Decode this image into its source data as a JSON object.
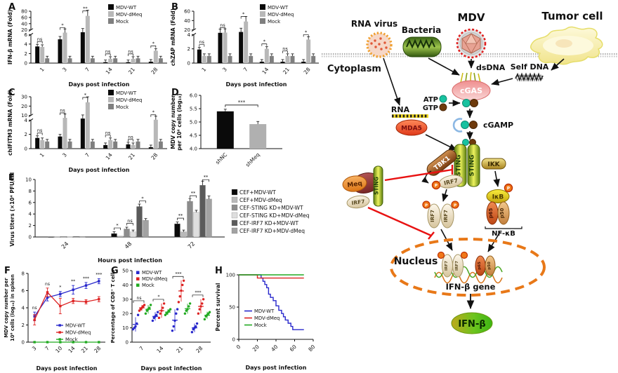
{
  "chart_data": [
    {
      "panel": "A",
      "type": "bar-broken",
      "ylabel": "IFN-β mRNA (Fold)",
      "xlabel": "Days post infection",
      "categories": [
        "1",
        "3",
        "7",
        "14",
        "21",
        "28"
      ],
      "series": [
        {
          "name": "MDV-WT",
          "color": "#0a0a0a",
          "values": [
            3.5,
            5.0,
            13,
            0.2,
            0.2,
            0.3
          ]
        },
        {
          "name": "MDV-dMeq",
          "color": "#b8b8b8",
          "values": [
            3.4,
            12,
            65,
            0.9,
            0.9,
            2.6
          ]
        },
        {
          "name": "Mock",
          "color": "#7f7f7f",
          "values": [
            1,
            1,
            1,
            1,
            1,
            1
          ]
        }
      ],
      "significance": [
        "ns",
        "*",
        "**",
        "ns",
        "ns",
        "*"
      ],
      "axis": {
        "lower": [
          0,
          6
        ],
        "lower_ticks": [
          0,
          2,
          4,
          6
        ],
        "upper": [
          20,
          80
        ],
        "upper_ticks": [
          20,
          40,
          60,
          80
        ]
      }
    },
    {
      "panel": "B",
      "type": "bar-broken",
      "ylabel": "chZAP mRNA (Fold)",
      "xlabel": "Days post infection",
      "categories": [
        "1",
        "3",
        "7",
        "14",
        "21",
        "28"
      ],
      "series": [
        {
          "name": "MDV-WT",
          "color": "#0a0a0a",
          "values": [
            1.9,
            10,
            13,
            0.2,
            0.2,
            0.2
          ]
        },
        {
          "name": "MDV-dMeq",
          "color": "#b8b8b8",
          "values": [
            1.0,
            11,
            38,
            2.0,
            1.0,
            3.3
          ]
        },
        {
          "name": "Mock",
          "color": "#7f7f7f",
          "values": [
            1,
            1,
            1,
            1,
            1,
            1
          ]
        }
      ],
      "significance": [
        "ns",
        "ns",
        "*",
        "*",
        "ns",
        "*"
      ],
      "axis": {
        "lower": [
          0,
          4
        ],
        "lower_ticks": [
          0,
          2,
          4
        ],
        "upper": [
          20,
          60
        ],
        "upper_ticks": [
          20,
          40,
          60
        ]
      }
    },
    {
      "panel": "C",
      "type": "bar-broken",
      "ylabel": "chIFITM3 mRNA (Fold)",
      "xlabel": "Days post infection",
      "categories": [
        "1",
        "3",
        "7",
        "14",
        "21",
        "28"
      ],
      "series": [
        {
          "name": "MDV-WT",
          "color": "#0a0a0a",
          "values": [
            1.5,
            1.7,
            6,
            0.5,
            0.6,
            0.2
          ]
        },
        {
          "name": "MDV-dMeq",
          "color": "#b8b8b8",
          "values": [
            1.2,
            7,
            24,
            1.2,
            0.5,
            4.5
          ]
        },
        {
          "name": "Mock",
          "color": "#7f7f7f",
          "values": [
            1,
            1,
            1,
            1,
            1,
            1
          ]
        }
      ],
      "significance": [
        "ns",
        "ns",
        "*",
        "ns",
        "ns",
        "*"
      ],
      "axis": {
        "lower": [
          0,
          4
        ],
        "lower_ticks": [
          0,
          2,
          4
        ],
        "upper": [
          10,
          30
        ],
        "upper_ticks": [
          10,
          20,
          30
        ]
      }
    },
    {
      "panel": "D",
      "type": "bar",
      "ylabel_lines": [
        "MDV copy number",
        "per 10⁶ cells (log₁₀)"
      ],
      "categories": [
        "shNC",
        "shMeq"
      ],
      "values": [
        5.4,
        4.92
      ],
      "errors": [
        0.04,
        0.05
      ],
      "colors": [
        "#0a0a0a",
        "#b0b0b0"
      ],
      "significance": "***",
      "ylim": [
        4,
        6
      ],
      "yticks": [
        4.0,
        4.5,
        5.0,
        5.5,
        6.0
      ]
    },
    {
      "panel": "E",
      "type": "bar-group",
      "ylabel": "Virus titers (×10⁴ PFU/ml)",
      "xlabel": "Hours post infection",
      "categories": [
        "24",
        "48",
        "72"
      ],
      "series": [
        {
          "name": "CEF+MDV-WT",
          "color": "#0a0a0a",
          "values": [
            0.05,
            0.6,
            2.3
          ]
        },
        {
          "name": "CEF+MDV-dMeq",
          "color": "#b9b9b9",
          "values": [
            0.05,
            0.15,
            0.9
          ]
        },
        {
          "name": "CEF-STING KD+MDV-WT",
          "color": "#8c8c8c",
          "values": [
            0.1,
            1.4,
            6.2
          ]
        },
        {
          "name": "CEF-STING KD+MDV-dMeq",
          "color": "#dedede",
          "values": [
            0.05,
            0.9,
            4.3
          ]
        },
        {
          "name": "CEF-IRF7 KD+MDV-WT",
          "color": "#5a5a5a",
          "values": [
            0.1,
            5.3,
            9.0
          ]
        },
        {
          "name": "CEF-IRF7 KD+MDV-dMeq",
          "color": "#a2a2a2",
          "values": [
            0.1,
            2.9,
            6.6
          ]
        }
      ],
      "sig_brackets": [
        {
          "cat": 1,
          "pair": [
            0,
            1
          ],
          "label": "*"
        },
        {
          "cat": 1,
          "pair": [
            2,
            3
          ],
          "label": "ns"
        },
        {
          "cat": 1,
          "pair": [
            4,
            5
          ],
          "label": "*"
        },
        {
          "cat": 2,
          "pair": [
            0,
            1
          ],
          "label": "**"
        },
        {
          "cat": 2,
          "pair": [
            2,
            3
          ],
          "label": "**"
        },
        {
          "cat": 2,
          "pair": [
            4,
            5
          ],
          "label": "**"
        }
      ],
      "ylim": [
        0,
        10
      ],
      "yticks": [
        0,
        2,
        4,
        6,
        8,
        10
      ]
    },
    {
      "panel": "F",
      "type": "line",
      "ylabel_lines": [
        "MDV copy number per",
        "10⁶ cells (log₁₀) in spleen"
      ],
      "xlabel": "Days post infection",
      "categories": [
        "3",
        "7",
        "10",
        "14",
        "21",
        "28"
      ],
      "series": [
        {
          "name": "MDV-WT",
          "color": "#2828cc",
          "values": [
            3.0,
            5.2,
            5.6,
            6.1,
            6.6,
            7.1
          ],
          "errors": [
            0.5,
            0.4,
            0.3,
            0.5,
            0.35,
            0.3
          ]
        },
        {
          "name": "MDV-dMeq",
          "color": "#dd2222",
          "values": [
            2.6,
            5.8,
            4.2,
            4.8,
            4.7,
            5.0
          ],
          "errors": [
            0.6,
            0.5,
            0.9,
            0.3,
            0.25,
            0.3
          ]
        },
        {
          "name": "Mock",
          "color": "#22aa22",
          "values": [
            0,
            0,
            0,
            0,
            0,
            0
          ],
          "errors": [
            0,
            0,
            0,
            0,
            0,
            0
          ]
        }
      ],
      "significance": [
        "ns",
        "ns",
        "*",
        "**",
        "***",
        "***"
      ],
      "ylim": [
        0,
        8
      ],
      "yticks": [
        0,
        2,
        4,
        6,
        8
      ]
    },
    {
      "panel": "G",
      "type": "scatter",
      "ylabel": "Percentage of CD8⁺ T cells",
      "xlabel": "Days post infection",
      "categories": [
        "7",
        "14",
        "21",
        "28"
      ],
      "series": [
        {
          "name": "MDV-WT",
          "color": "#2828cc",
          "points": [
            [
              9,
              10,
              11,
              13,
              19
            ],
            [
              15,
              17,
              18,
              19,
              21
            ],
            [
              8,
              11,
              15,
              20,
              23
            ],
            [
              7,
              9,
              10,
              11,
              13
            ]
          ]
        },
        {
          "name": "MDV-dMeq",
          "color": "#dd2222",
          "points": [
            [
              22,
              23,
              24,
              25,
              26
            ],
            [
              17,
              20,
              22,
              24,
              27
            ],
            [
              28,
              32,
              36,
              40,
              43
            ],
            [
              20,
              23,
              25,
              27,
              30
            ]
          ]
        },
        {
          "name": "Mock",
          "color": "#22aa22",
          "points": [
            [
              20,
              22,
              23,
              24,
              26
            ],
            [
              19,
              20,
              21,
              22,
              23
            ],
            [
              20,
              22,
              23,
              25,
              27
            ],
            [
              16,
              18,
              19,
              20,
              21
            ]
          ]
        }
      ],
      "significance": [
        "ns",
        "*",
        "***",
        "***"
      ],
      "ylim": [
        0,
        50
      ],
      "yticks": [
        0,
        10,
        20,
        30,
        40,
        50
      ]
    },
    {
      "panel": "H",
      "type": "step",
      "ylabel": "Percent survival",
      "xlabel": "Days post infection",
      "series": [
        {
          "name": "MDV-WT",
          "color": "#2828cc",
          "points": [
            [
              0,
              100
            ],
            [
              22,
              100
            ],
            [
              24,
              95
            ],
            [
              26,
              90
            ],
            [
              28,
              85
            ],
            [
              30,
              80
            ],
            [
              32,
              70
            ],
            [
              34,
              65
            ],
            [
              37,
              60
            ],
            [
              40,
              52
            ],
            [
              43,
              45
            ],
            [
              46,
              40
            ],
            [
              48,
              35
            ],
            [
              50,
              30
            ],
            [
              53,
              25
            ],
            [
              56,
              20
            ],
            [
              58,
              15
            ],
            [
              70,
              15
            ]
          ]
        },
        {
          "name": "MDV-dMeq",
          "color": "#dd2222",
          "points": [
            [
              0,
              100
            ],
            [
              20,
              100
            ],
            [
              20,
              95
            ],
            [
              70,
              95
            ]
          ]
        },
        {
          "name": "Mock",
          "color": "#22aa22",
          "points": [
            [
              0,
              100
            ],
            [
              70,
              100
            ]
          ]
        }
      ],
      "xlim": [
        0,
        80
      ],
      "xticks": [
        0,
        20,
        40,
        60,
        80
      ],
      "ylim": [
        0,
        100
      ],
      "yticks": [
        0,
        50,
        100
      ]
    }
  ],
  "diagram": {
    "rna_virus": "RNA virus",
    "bacteria": "Bacteria",
    "mdv": "MDV",
    "tumor_cell": "Tumor cell",
    "cytoplasm": "Cytoplasm",
    "dsdna": "dsDNA",
    "self_dna": "Self DNA",
    "cgas": "cGAS",
    "atp": "ATP",
    "gtp": "GTP",
    "cgamp": "cGAMP",
    "rna": "RNA",
    "mda5": "MDA5",
    "sting": "STING",
    "tbk1": "TBK1",
    "ikk": "IKK",
    "meq": "Meq",
    "irf7": "IRF7",
    "ikb": "IκB",
    "p65": "p65",
    "p50": "p50",
    "nfkb": "NF-κB",
    "p": "P",
    "nucleus": "Nucleus",
    "ifnb_gene": "IFN-β gene",
    "ifnb": "IFN-β"
  }
}
